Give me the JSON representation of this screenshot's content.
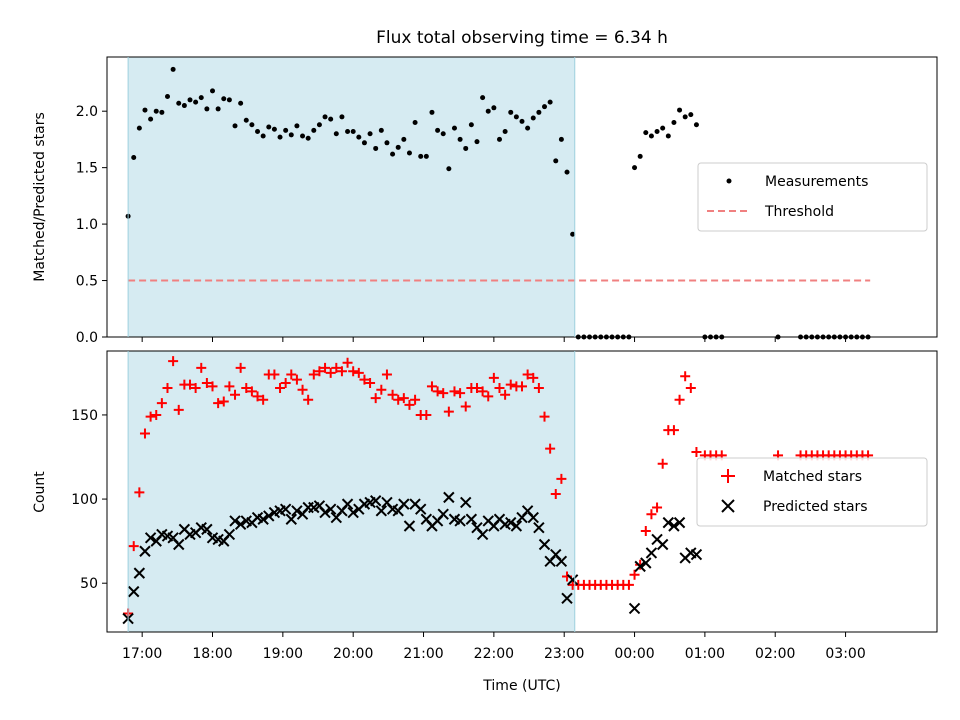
{
  "chart_data": [
    {
      "type": "scatter",
      "title": "Flux total observing time = 6.34 h",
      "xlabel": "",
      "ylabel": "Matched/Predicted stars",
      "xlim": [
        16.5,
        28.3
      ],
      "ylim": [
        0,
        2.48
      ],
      "yticks": [
        0.0,
        0.5,
        1.0,
        1.5,
        2.0
      ],
      "ytick_labels": [
        "0.0",
        "0.5",
        "1.0",
        "1.5",
        "2.0"
      ],
      "shaded_region": {
        "x0": 16.8,
        "x1": 23.15,
        "color": "#add8e6"
      },
      "legend": {
        "placement": "center-right",
        "entries": [
          "Measurements",
          "Threshold"
        ]
      },
      "series": [
        {
          "name": "Measurements",
          "style": "dot",
          "color": "#000000",
          "x": [
            16.8,
            16.88,
            16.96,
            17.04,
            17.12,
            17.2,
            17.28,
            17.36,
            17.44,
            17.52,
            17.6,
            17.68,
            17.76,
            17.84,
            17.92,
            18.0,
            18.08,
            18.16,
            18.24,
            18.32,
            18.4,
            18.48,
            18.56,
            18.64,
            18.72,
            18.8,
            18.88,
            18.96,
            19.04,
            19.12,
            19.2,
            19.28,
            19.36,
            19.44,
            19.52,
            19.6,
            19.68,
            19.76,
            19.84,
            19.92,
            20.0,
            20.08,
            20.16,
            20.24,
            20.32,
            20.4,
            20.48,
            20.56,
            20.64,
            20.72,
            20.8,
            20.88,
            20.96,
            21.04,
            21.12,
            21.2,
            21.28,
            21.36,
            21.44,
            21.52,
            21.6,
            21.68,
            21.76,
            21.84,
            21.92,
            22.0,
            22.08,
            22.16,
            22.24,
            22.32,
            22.4,
            22.48,
            22.56,
            22.64,
            22.72,
            22.8,
            22.88,
            22.96,
            23.04,
            23.12,
            23.2,
            23.28,
            23.36,
            23.44,
            23.52,
            23.6,
            23.68,
            23.76,
            23.84,
            23.92,
            24.0,
            24.08,
            24.16,
            24.24,
            24.32,
            24.4,
            24.48,
            24.56,
            24.64,
            24.72,
            24.8,
            24.88,
            25.0,
            25.08,
            25.16,
            25.24,
            26.04,
            26.36,
            26.44,
            26.52,
            26.6,
            26.68,
            26.76,
            26.84,
            26.92,
            27.0,
            27.08,
            27.16,
            27.24,
            27.32
          ],
          "y": [
            1.07,
            1.59,
            1.85,
            2.01,
            1.93,
            2.0,
            1.99,
            2.13,
            2.37,
            2.07,
            2.05,
            2.1,
            2.08,
            2.12,
            2.02,
            2.18,
            2.02,
            2.11,
            2.1,
            1.87,
            2.07,
            1.92,
            1.88,
            1.82,
            1.78,
            1.86,
            1.84,
            1.77,
            1.83,
            1.79,
            1.87,
            1.78,
            1.76,
            1.83,
            1.88,
            1.95,
            1.93,
            1.8,
            1.95,
            1.82,
            1.82,
            1.77,
            1.72,
            1.8,
            1.67,
            1.83,
            1.72,
            1.62,
            1.68,
            1.75,
            1.63,
            1.9,
            1.6,
            1.6,
            1.99,
            1.83,
            1.8,
            1.49,
            1.85,
            1.75,
            1.67,
            1.88,
            1.73,
            2.12,
            2.0,
            2.03,
            1.75,
            1.82,
            1.99,
            1.95,
            1.91,
            1.85,
            1.94,
            1.99,
            2.04,
            2.08,
            1.56,
            1.75,
            1.46,
            0.91,
            0.0,
            0.0,
            0.0,
            0.0,
            0.0,
            0.0,
            0.0,
            0.0,
            0.0,
            0.0,
            1.5,
            1.6,
            1.81,
            1.78,
            1.82,
            1.85,
            1.78,
            1.9,
            2.01,
            1.95,
            1.97,
            1.88,
            0.0,
            0.0,
            0.0,
            0.0,
            0.0,
            0.0,
            0.0,
            0.0,
            0.0,
            0.0,
            0.0,
            0.0,
            0.0,
            0.0,
            0.0,
            0.0,
            0.0,
            0.0
          ]
        },
        {
          "name": "Threshold",
          "style": "dashed-line",
          "color": "#f08080",
          "x": [
            16.8,
            27.35
          ],
          "y": [
            0.5,
            0.5
          ]
        }
      ]
    },
    {
      "type": "scatter",
      "title": "",
      "xlabel": "Time (UTC)",
      "ylabel": "Count",
      "xlim": [
        16.5,
        28.3
      ],
      "ylim": [
        21,
        188
      ],
      "yticks": [
        50,
        100,
        150
      ],
      "ytick_labels": [
        "50",
        "100",
        "150"
      ],
      "xticks": [
        17,
        18,
        19,
        20,
        21,
        22,
        23,
        24,
        25,
        26,
        27
      ],
      "xtick_labels": [
        "17:00",
        "18:00",
        "19:00",
        "20:00",
        "21:00",
        "22:00",
        "23:00",
        "00:00",
        "01:00",
        "02:00",
        "03:00"
      ],
      "shaded_region": {
        "x0": 16.8,
        "x1": 23.15,
        "color": "#add8e6"
      },
      "legend": {
        "placement": "center-right",
        "entries": [
          "Matched stars",
          "Predicted stars"
        ]
      },
      "series": [
        {
          "name": "Matched stars",
          "style": "plus",
          "color": "#ff0000",
          "x": [
            16.8,
            16.88,
            16.96,
            17.04,
            17.12,
            17.2,
            17.28,
            17.36,
            17.44,
            17.52,
            17.6,
            17.68,
            17.76,
            17.84,
            17.92,
            18.0,
            18.08,
            18.16,
            18.24,
            18.32,
            18.4,
            18.48,
            18.56,
            18.64,
            18.72,
            18.8,
            18.88,
            18.96,
            19.04,
            19.12,
            19.2,
            19.28,
            19.36,
            19.44,
            19.52,
            19.6,
            19.68,
            19.76,
            19.84,
            19.92,
            20.0,
            20.08,
            20.16,
            20.24,
            20.32,
            20.4,
            20.48,
            20.56,
            20.64,
            20.72,
            20.8,
            20.88,
            20.96,
            21.04,
            21.12,
            21.2,
            21.28,
            21.36,
            21.44,
            21.52,
            21.6,
            21.68,
            21.76,
            21.84,
            21.92,
            22.0,
            22.08,
            22.16,
            22.24,
            22.32,
            22.4,
            22.48,
            22.56,
            22.64,
            22.72,
            22.8,
            22.88,
            22.96,
            23.04,
            23.12,
            23.2,
            23.28,
            23.36,
            23.44,
            23.52,
            23.6,
            23.68,
            23.76,
            23.84,
            23.92,
            24.0,
            24.08,
            24.16,
            24.24,
            24.32,
            24.4,
            24.48,
            24.56,
            24.64,
            24.72,
            24.8,
            24.88,
            25.0,
            25.08,
            25.16,
            25.24,
            26.04,
            26.36,
            26.44,
            26.52,
            26.6,
            26.68,
            26.76,
            26.84,
            26.92,
            27.0,
            27.08,
            27.16,
            27.24,
            27.32
          ],
          "y": [
            32,
            72,
            104,
            139,
            149,
            150,
            157,
            166,
            182,
            153,
            168,
            168,
            166,
            178,
            169,
            167,
            157,
            158,
            167,
            162,
            178,
            166,
            164,
            161,
            159,
            174,
            174,
            166,
            169,
            174,
            171,
            165,
            159,
            174,
            176,
            178,
            175,
            178,
            176,
            181,
            176,
            175,
            171,
            169,
            160,
            165,
            174,
            162,
            159,
            160,
            156,
            159,
            150,
            150,
            167,
            164,
            163,
            152,
            164,
            163,
            155,
            166,
            166,
            164,
            161,
            172,
            166,
            162,
            168,
            167,
            167,
            174,
            172,
            166,
            149,
            130,
            103,
            112,
            54,
            49,
            49,
            49,
            49,
            49,
            49,
            49,
            49,
            49,
            49,
            49,
            55,
            61,
            81,
            91,
            95,
            121,
            141,
            141,
            159,
            173,
            166,
            128,
            126,
            126,
            126,
            126,
            126,
            126,
            126,
            126,
            126,
            126,
            126,
            126,
            126,
            126,
            126,
            126,
            126,
            126
          ]
        },
        {
          "name": "Predicted stars",
          "style": "x",
          "color": "#000000",
          "x": [
            16.8,
            16.88,
            16.96,
            17.04,
            17.12,
            17.2,
            17.28,
            17.36,
            17.44,
            17.52,
            17.6,
            17.68,
            17.76,
            17.84,
            17.92,
            18.0,
            18.08,
            18.16,
            18.24,
            18.32,
            18.4,
            18.48,
            18.56,
            18.64,
            18.72,
            18.8,
            18.88,
            18.96,
            19.04,
            19.12,
            19.2,
            19.28,
            19.36,
            19.44,
            19.52,
            19.6,
            19.68,
            19.76,
            19.84,
            19.92,
            20.0,
            20.08,
            20.16,
            20.24,
            20.32,
            20.4,
            20.48,
            20.56,
            20.64,
            20.72,
            20.8,
            20.88,
            20.96,
            21.04,
            21.12,
            21.2,
            21.28,
            21.36,
            21.44,
            21.52,
            21.6,
            21.68,
            21.76,
            21.84,
            21.92,
            22.0,
            22.08,
            22.16,
            22.24,
            22.32,
            22.4,
            22.48,
            22.56,
            22.64,
            22.72,
            22.8,
            22.88,
            22.96,
            23.04,
            23.12,
            24.0,
            24.08,
            24.16,
            24.24,
            24.32,
            24.4,
            24.48,
            24.56,
            24.64,
            24.72,
            24.8,
            24.88
          ],
          "y": [
            29,
            45,
            56,
            69,
            77,
            75,
            79,
            78,
            77,
            73,
            82,
            79,
            80,
            83,
            82,
            77,
            76,
            75,
            79,
            87,
            85,
            87,
            86,
            89,
            88,
            90,
            92,
            93,
            94,
            88,
            93,
            91,
            95,
            95,
            96,
            92,
            94,
            89,
            93,
            97,
            92,
            94,
            97,
            98,
            99,
            93,
            98,
            94,
            93,
            97,
            84,
            97,
            94,
            88,
            84,
            87,
            91,
            101,
            88,
            87,
            98,
            88,
            83,
            79,
            87,
            84,
            88,
            85,
            86,
            84,
            89,
            93,
            89,
            83,
            73,
            63,
            67,
            63,
            41,
            52,
            35,
            60,
            62,
            68,
            76,
            73,
            86,
            84,
            86,
            65,
            68,
            67
          ]
        }
      ]
    }
  ]
}
